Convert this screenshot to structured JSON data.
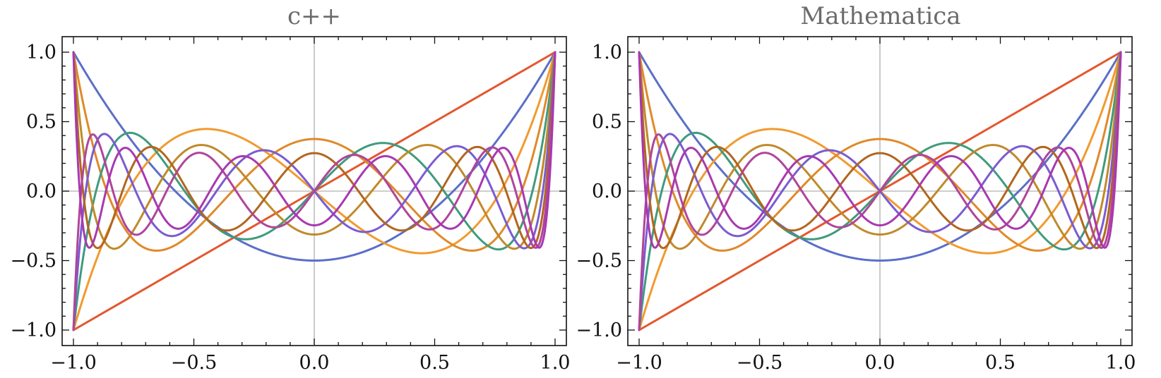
{
  "chart_data": [
    {
      "type": "line",
      "title": "c++",
      "xlabel": "",
      "ylabel": "",
      "xlim": [
        -1.0,
        1.0
      ],
      "ylim": [
        -1.0,
        1.0
      ],
      "xticks": [
        "-1.0",
        "-0.5",
        "0.0",
        "0.5",
        "1.0"
      ],
      "yticks": [
        "-1.0",
        "-0.5",
        "0.0",
        "0.5",
        "1.0"
      ],
      "grid": false,
      "legend": "none",
      "function_family": "Legendre P_n(x) for n = 1..10",
      "series": [
        {
          "n": 1,
          "color": "#e4572e",
          "x": [
            -1,
            -0.5,
            0,
            0.5,
            1
          ],
          "values": [
            -1,
            -0.5,
            0,
            0.5,
            1
          ]
        },
        {
          "n": 2,
          "color": "#5b6fc8",
          "x": [
            -1,
            -0.5,
            0,
            0.5,
            1
          ],
          "values": [
            1,
            -0.125,
            -0.5,
            -0.125,
            1
          ]
        },
        {
          "n": 3,
          "color": "#f29a2e",
          "x": [
            -1,
            -0.45,
            0,
            0.45,
            1
          ],
          "values": [
            -1,
            0.44,
            0,
            -0.44,
            1
          ]
        },
        {
          "n": 4,
          "color": "#e0892a",
          "x": [
            -1,
            -0.5,
            0,
            0.5,
            1
          ],
          "values": [
            1,
            -0.289,
            0.375,
            -0.289,
            1
          ]
        },
        {
          "n": 5,
          "color": "#3f9b7d",
          "x": [
            -1,
            -0.5,
            0,
            0.5,
            1
          ],
          "values": [
            -1,
            0.09,
            0,
            -0.09,
            1
          ]
        },
        {
          "n": 6,
          "color": "#c08a2a",
          "x": [
            -1,
            -0.5,
            0,
            0.5,
            1
          ],
          "values": [
            1,
            0.323,
            -0.3125,
            0.323,
            1
          ]
        },
        {
          "n": 7,
          "color": "#7a5cd1",
          "x": [
            -1,
            -0.5,
            0,
            0.5,
            1
          ],
          "values": [
            -1,
            0.223,
            0,
            -0.223,
            1
          ]
        },
        {
          "n": 8,
          "color": "#b2661f",
          "x": [
            -1,
            -0.5,
            0,
            0.5,
            1
          ],
          "values": [
            1,
            -0.267,
            0.273,
            -0.267,
            1
          ]
        },
        {
          "n": 9,
          "color": "#b0459a",
          "x": [
            -1,
            -0.5,
            0,
            0.5,
            1
          ],
          "values": [
            -1,
            -0.268,
            0,
            0.268,
            1
          ]
        },
        {
          "n": 10,
          "color": "#a839b0",
          "x": [
            -1,
            -0.5,
            0,
            0.5,
            1
          ],
          "values": [
            1,
            -0.188,
            -0.246,
            -0.188,
            1
          ]
        }
      ]
    },
    {
      "type": "line",
      "title": "Mathematica",
      "xlabel": "",
      "ylabel": "",
      "xlim": [
        -1.0,
        1.0
      ],
      "ylim": [
        -1.0,
        1.0
      ],
      "xticks": [
        "-1.0",
        "-0.5",
        "0.0",
        "0.5",
        "1.0"
      ],
      "yticks": [
        "-1.0",
        "-0.5",
        "0.0",
        "0.5",
        "1.0"
      ],
      "grid": false,
      "legend": "none",
      "function_family": "Legendre P_n(x) for n = 1..10",
      "series": [
        {
          "n": 1,
          "color": "#e4572e",
          "x": [
            -1,
            -0.5,
            0,
            0.5,
            1
          ],
          "values": [
            -1,
            -0.5,
            0,
            0.5,
            1
          ]
        },
        {
          "n": 2,
          "color": "#5b6fc8",
          "x": [
            -1,
            -0.5,
            0,
            0.5,
            1
          ],
          "values": [
            1,
            -0.125,
            -0.5,
            -0.125,
            1
          ]
        },
        {
          "n": 3,
          "color": "#f29a2e",
          "x": [
            -1,
            -0.45,
            0,
            0.45,
            1
          ],
          "values": [
            -1,
            0.44,
            0,
            -0.44,
            1
          ]
        },
        {
          "n": 4,
          "color": "#e0892a",
          "x": [
            -1,
            -0.5,
            0,
            0.5,
            1
          ],
          "values": [
            1,
            -0.289,
            0.375,
            -0.289,
            1
          ]
        },
        {
          "n": 5,
          "color": "#3f9b7d",
          "x": [
            -1,
            -0.5,
            0,
            0.5,
            1
          ],
          "values": [
            -1,
            0.09,
            0,
            -0.09,
            1
          ]
        },
        {
          "n": 6,
          "color": "#c08a2a",
          "x": [
            -1,
            -0.5,
            0,
            0.5,
            1
          ],
          "values": [
            1,
            0.323,
            -0.3125,
            0.323,
            1
          ]
        },
        {
          "n": 7,
          "color": "#7a5cd1",
          "x": [
            -1,
            -0.5,
            0,
            0.5,
            1
          ],
          "values": [
            -1,
            0.223,
            0,
            -0.223,
            1
          ]
        },
        {
          "n": 8,
          "color": "#b2661f",
          "x": [
            -1,
            -0.5,
            0,
            0.5,
            1
          ],
          "values": [
            1,
            -0.267,
            0.273,
            -0.267,
            1
          ]
        },
        {
          "n": 9,
          "color": "#b0459a",
          "x": [
            -1,
            -0.5,
            0,
            0.5,
            1
          ],
          "values": [
            -1,
            -0.268,
            0,
            0.268,
            1
          ]
        },
        {
          "n": 10,
          "color": "#a839b0",
          "x": [
            -1,
            -0.5,
            0,
            0.5,
            1
          ],
          "values": [
            1,
            -0.188,
            -0.246,
            -0.188,
            1
          ]
        }
      ]
    }
  ]
}
